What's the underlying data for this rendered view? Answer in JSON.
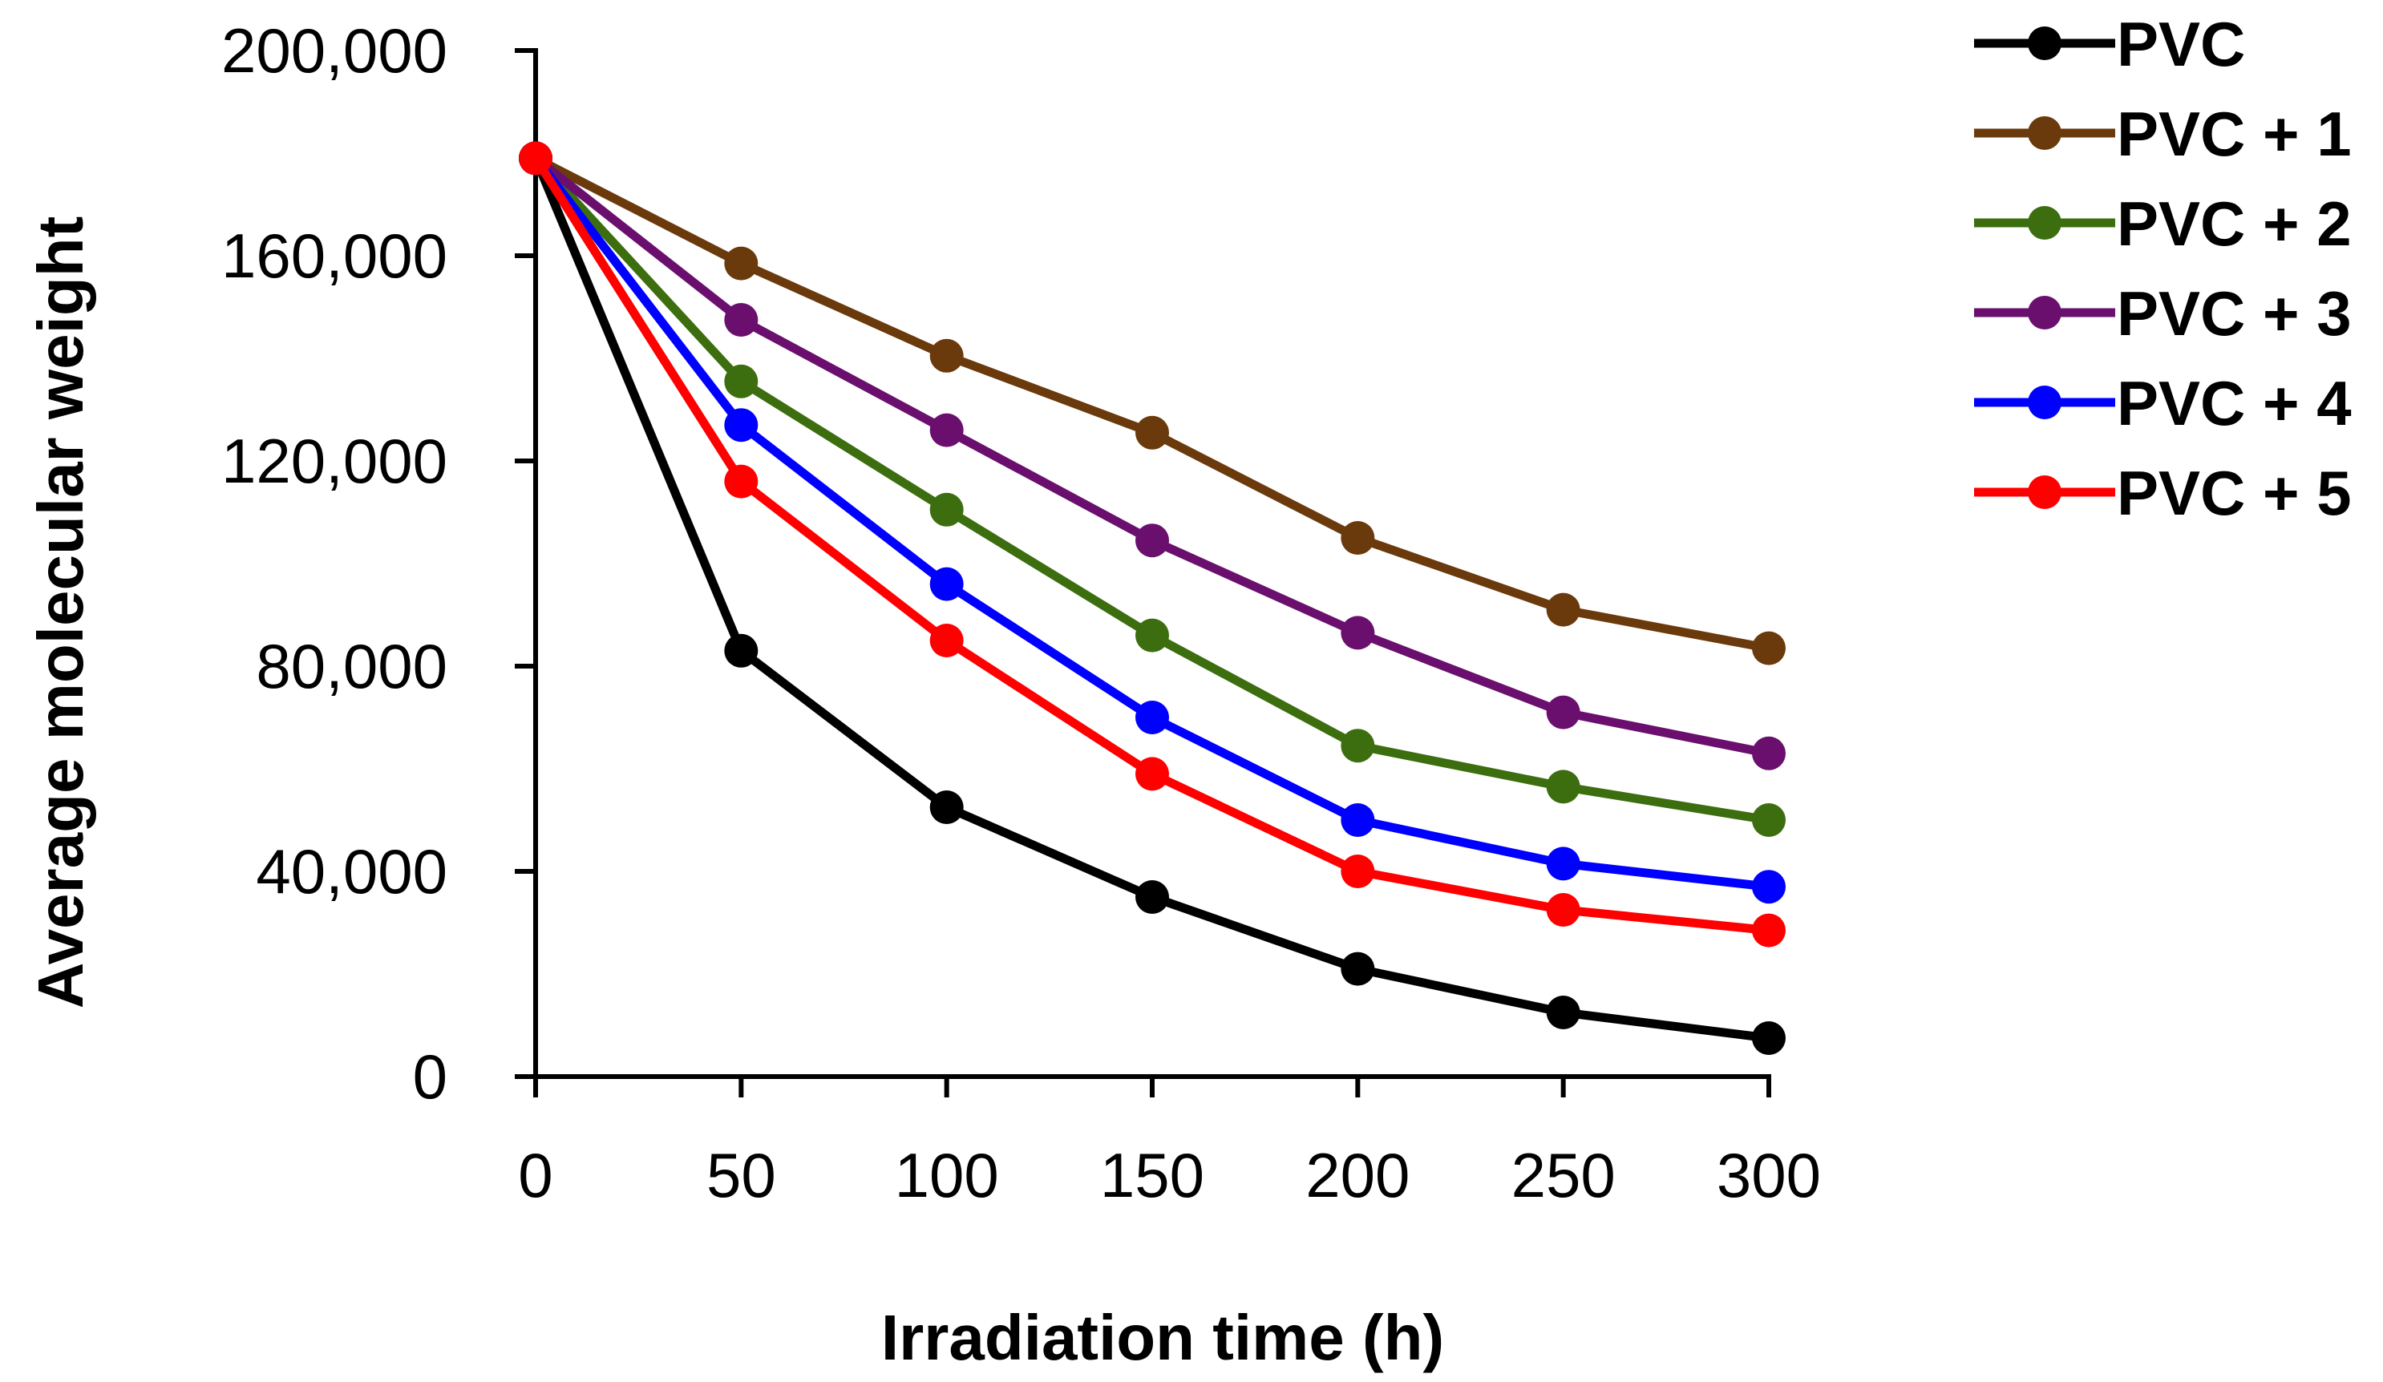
{
  "chart_data": {
    "type": "line",
    "title": "",
    "xlabel": "Irradiation time (h)",
    "ylabel": "Average molecular weight",
    "x": [
      0,
      50,
      100,
      150,
      200,
      250,
      300
    ],
    "x_tick_labels": [
      "0",
      "50",
      "100",
      "150",
      "200",
      "250",
      "300"
    ],
    "xlim": [
      0,
      300
    ],
    "y_ticks": [
      0,
      40000,
      80000,
      120000,
      160000,
      200000
    ],
    "y_tick_labels": [
      "0",
      "40,000",
      "80,000",
      "120,000",
      "160,000",
      "200,000"
    ],
    "ylim": [
      0,
      200000
    ],
    "grid": false,
    "legend_position": "top-right, outside plot area",
    "series": [
      {
        "name": "PVC",
        "color": "#000000",
        "values": [
          179000,
          83000,
          52500,
          35000,
          21000,
          12500,
          7500
        ]
      },
      {
        "name": "PVC + 1",
        "color": "#6B3A0C",
        "values": [
          179000,
          158500,
          140500,
          125500,
          105000,
          91000,
          83500
        ]
      },
      {
        "name": "PVC + 2",
        "color": "#3C6E0F",
        "values": [
          179000,
          135500,
          110500,
          86000,
          64500,
          56500,
          50000
        ]
      },
      {
        "name": "PVC + 3",
        "color": "#6A0F6E",
        "values": [
          179000,
          147500,
          126000,
          104500,
          86500,
          71000,
          63000
        ]
      },
      {
        "name": "PVC + 4",
        "color": "#0000FF",
        "values": [
          179000,
          127000,
          96000,
          70000,
          50000,
          41500,
          37000
        ]
      },
      {
        "name": "PVC + 5",
        "color": "#FF0000",
        "values": [
          179000,
          116000,
          85000,
          59000,
          40000,
          32500,
          28500
        ]
      }
    ]
  }
}
